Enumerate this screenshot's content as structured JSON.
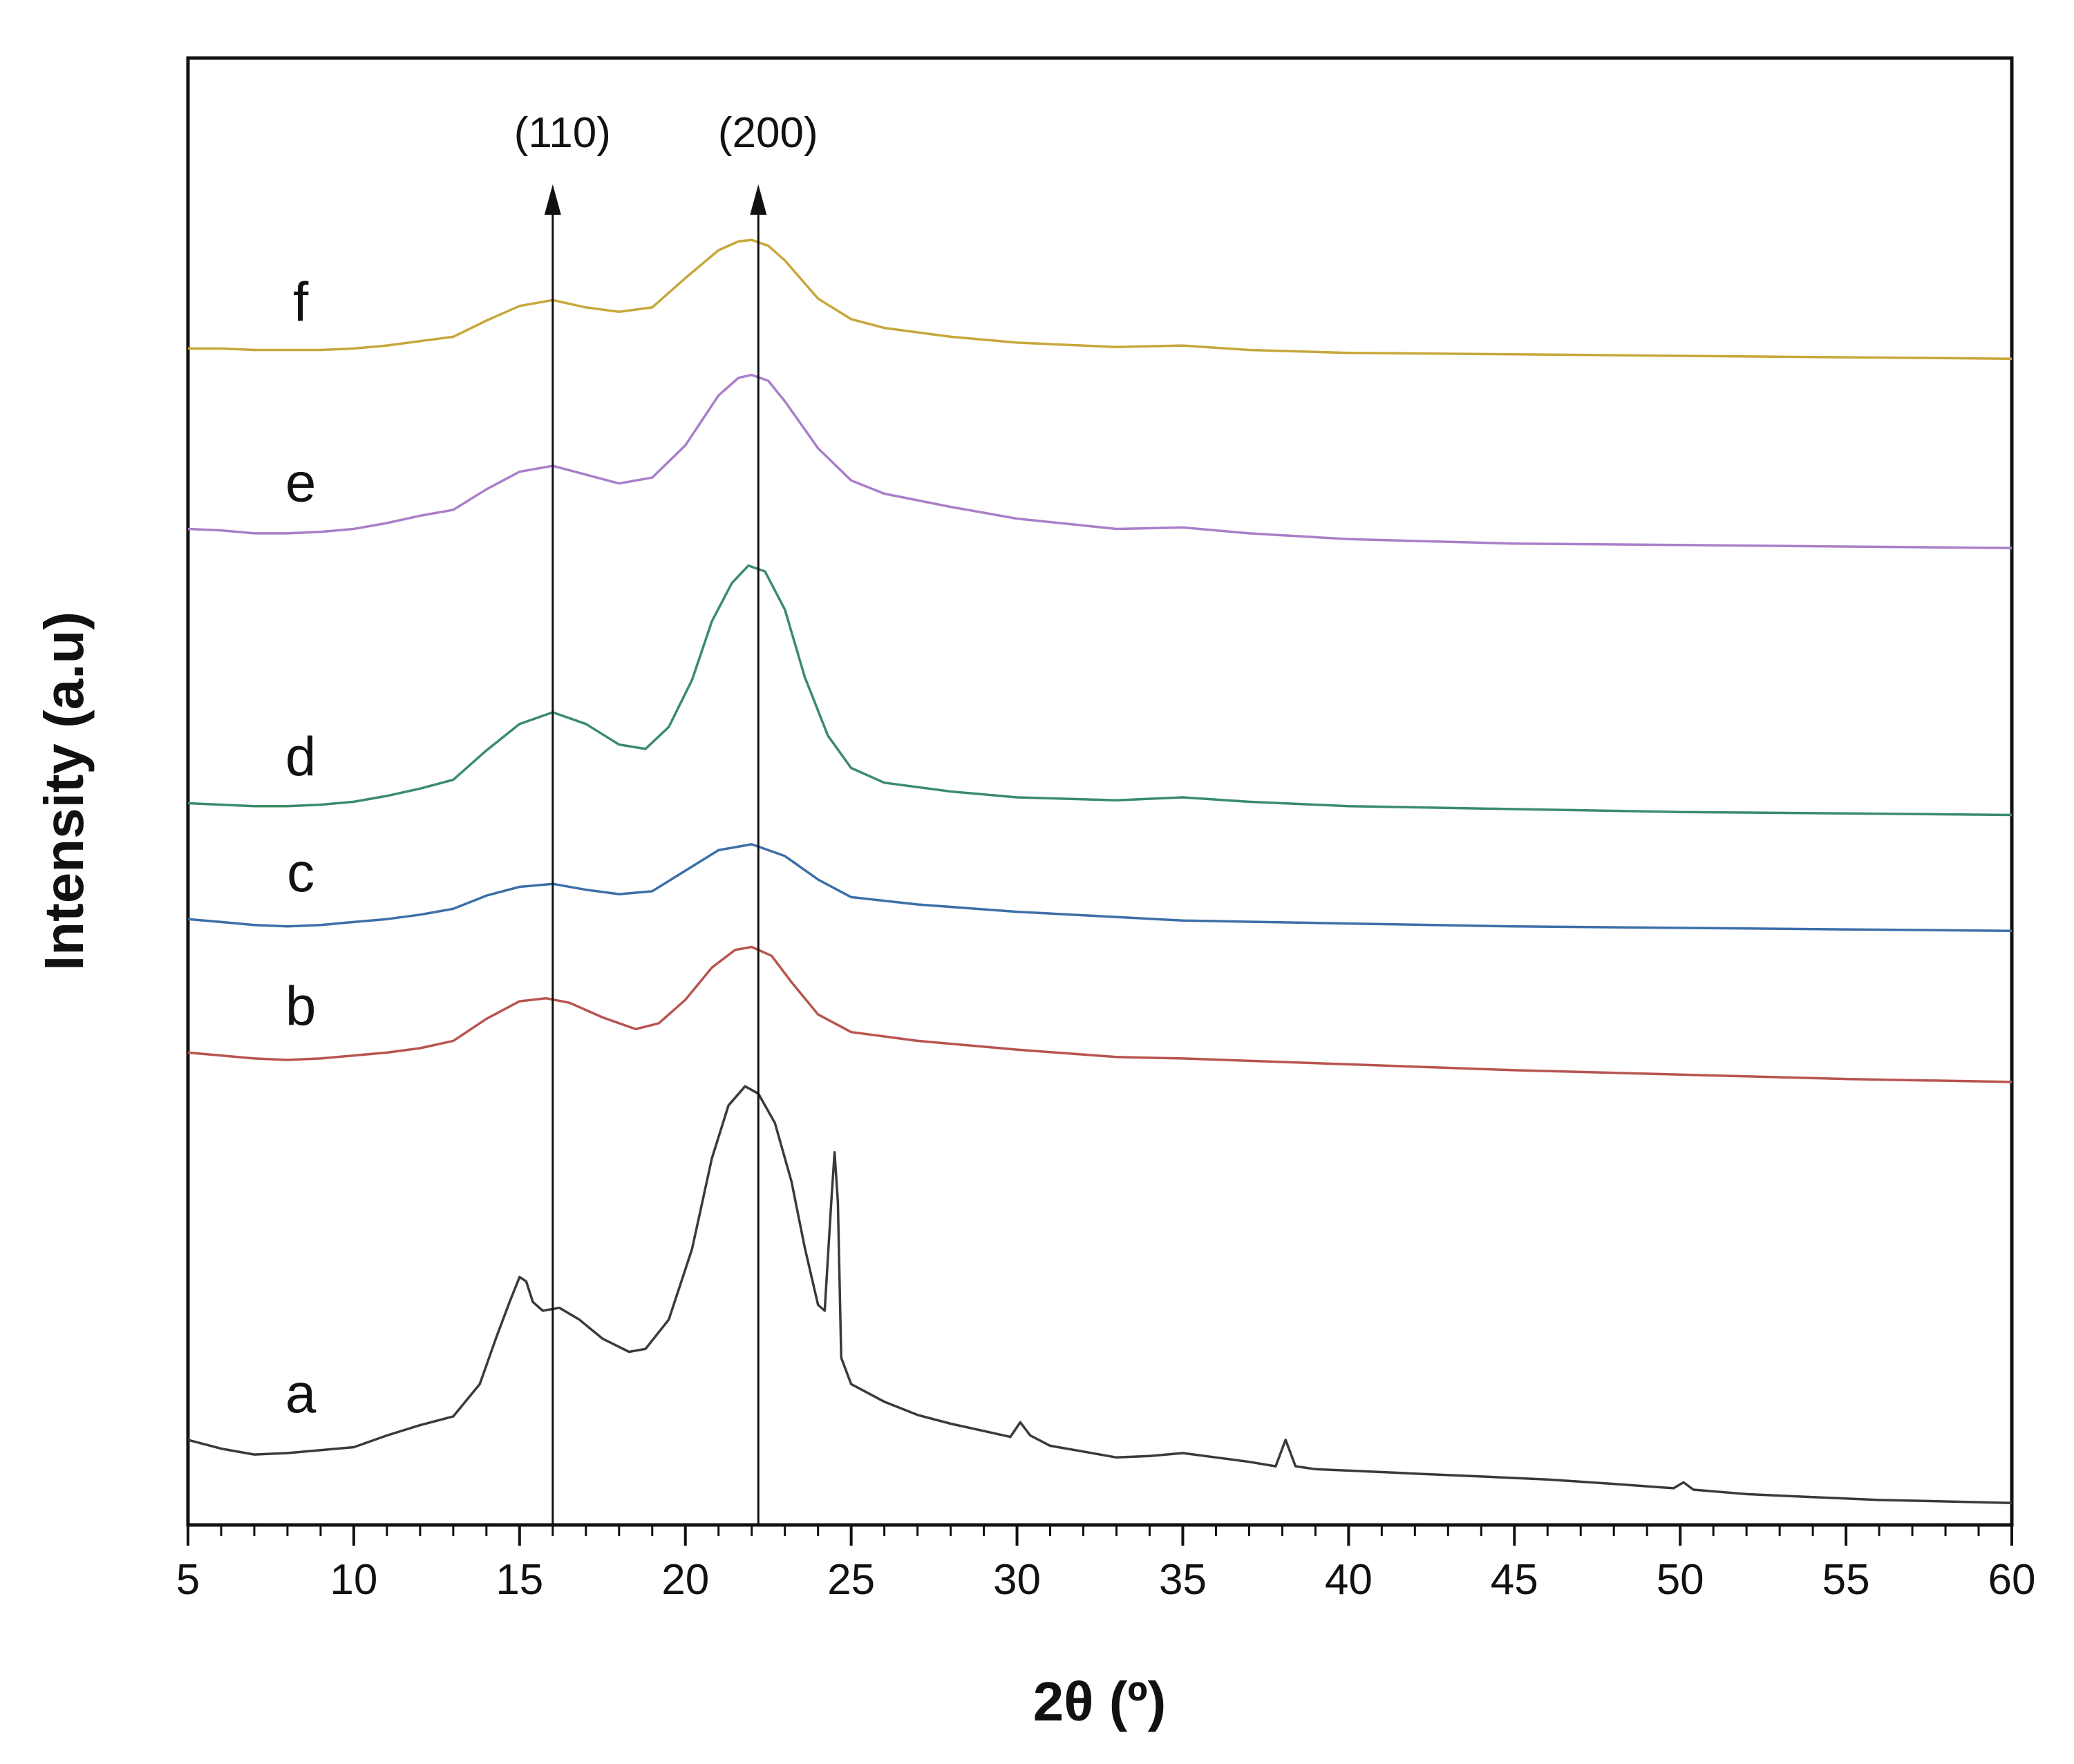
{
  "chart_data": {
    "type": "line",
    "title": "",
    "xlabel": "2θ (º)",
    "ylabel": "Intensity (a.u)",
    "xlim": [
      5,
      60
    ],
    "ylim": [
      0,
      100
    ],
    "xticks": [
      5,
      10,
      15,
      20,
      25,
      30,
      35,
      40,
      45,
      50,
      55,
      60
    ],
    "grid": false,
    "legend": "none",
    "peak_markers": [
      {
        "label": "(110)",
        "x": 16.0
      },
      {
        "label": "(200)",
        "x": 22.2
      }
    ],
    "series": [
      {
        "name": "a",
        "color": "#3a3a3a",
        "points": [
          [
            5,
            5.8
          ],
          [
            6,
            5.2
          ],
          [
            7,
            4.8
          ],
          [
            8,
            4.9
          ],
          [
            9,
            5.1
          ],
          [
            10,
            5.3
          ],
          [
            11,
            6.1
          ],
          [
            12,
            6.8
          ],
          [
            13,
            7.4
          ],
          [
            13.8,
            9.6
          ],
          [
            14.3,
            12.8
          ],
          [
            14.7,
            15.2
          ],
          [
            15.0,
            16.9
          ],
          [
            15.2,
            16.6
          ],
          [
            15.4,
            15.2
          ],
          [
            15.7,
            14.6
          ],
          [
            16.2,
            14.8
          ],
          [
            16.8,
            14.0
          ],
          [
            17.5,
            12.7
          ],
          [
            18.3,
            11.8
          ],
          [
            18.8,
            12.0
          ],
          [
            19.5,
            14.0
          ],
          [
            20.2,
            18.8
          ],
          [
            20.8,
            25.0
          ],
          [
            21.3,
            28.6
          ],
          [
            21.8,
            29.9
          ],
          [
            22.2,
            29.4
          ],
          [
            22.7,
            27.4
          ],
          [
            23.2,
            23.4
          ],
          [
            23.6,
            18.9
          ],
          [
            24.0,
            15.0
          ],
          [
            24.2,
            14.6
          ],
          [
            24.4,
            22.0
          ],
          [
            24.5,
            25.4
          ],
          [
            24.6,
            22.0
          ],
          [
            24.7,
            11.4
          ],
          [
            25.0,
            9.6
          ],
          [
            26,
            8.4
          ],
          [
            27,
            7.5
          ],
          [
            28,
            6.9
          ],
          [
            29,
            6.4
          ],
          [
            29.8,
            6.0
          ],
          [
            30.1,
            7.0
          ],
          [
            30.4,
            6.1
          ],
          [
            31,
            5.4
          ],
          [
            32,
            5.0
          ],
          [
            33,
            4.6
          ],
          [
            34,
            4.7
          ],
          [
            35,
            4.9
          ],
          [
            36,
            4.6
          ],
          [
            37,
            4.3
          ],
          [
            37.8,
            4.0
          ],
          [
            38.1,
            5.8
          ],
          [
            38.4,
            4.0
          ],
          [
            39,
            3.8
          ],
          [
            40,
            3.7
          ],
          [
            42,
            3.5
          ],
          [
            44,
            3.3
          ],
          [
            46,
            3.1
          ],
          [
            48,
            2.8
          ],
          [
            49.8,
            2.5
          ],
          [
            50.1,
            2.9
          ],
          [
            50.4,
            2.4
          ],
          [
            52,
            2.1
          ],
          [
            54,
            1.9
          ],
          [
            56,
            1.7
          ],
          [
            58,
            1.6
          ],
          [
            60,
            1.5
          ]
        ]
      },
      {
        "name": "b",
        "color": "#b85450",
        "points": [
          [
            5,
            32.2
          ],
          [
            6,
            32.0
          ],
          [
            7,
            31.8
          ],
          [
            8,
            31.7
          ],
          [
            9,
            31.8
          ],
          [
            10,
            32.0
          ],
          [
            11,
            32.2
          ],
          [
            12,
            32.5
          ],
          [
            13,
            33.0
          ],
          [
            14,
            34.5
          ],
          [
            15,
            35.7
          ],
          [
            15.8,
            35.9
          ],
          [
            16.5,
            35.6
          ],
          [
            17.5,
            34.6
          ],
          [
            18.5,
            33.8
          ],
          [
            19.2,
            34.2
          ],
          [
            20,
            35.8
          ],
          [
            20.8,
            38.0
          ],
          [
            21.5,
            39.2
          ],
          [
            22.0,
            39.4
          ],
          [
            22.6,
            38.8
          ],
          [
            23.2,
            37.0
          ],
          [
            24,
            34.8
          ],
          [
            25,
            33.6
          ],
          [
            27,
            33.0
          ],
          [
            30,
            32.4
          ],
          [
            33,
            31.9
          ],
          [
            35,
            31.8
          ],
          [
            40,
            31.4
          ],
          [
            45,
            31.0
          ],
          [
            50,
            30.7
          ],
          [
            55,
            30.4
          ],
          [
            60,
            30.2
          ]
        ]
      },
      {
        "name": "c",
        "color": "#3d6fa8",
        "points": [
          [
            5,
            41.3
          ],
          [
            6,
            41.1
          ],
          [
            7,
            40.9
          ],
          [
            8,
            40.8
          ],
          [
            9,
            40.9
          ],
          [
            10,
            41.1
          ],
          [
            11,
            41.3
          ],
          [
            12,
            41.6
          ],
          [
            13,
            42.0
          ],
          [
            14,
            42.9
          ],
          [
            15,
            43.5
          ],
          [
            16,
            43.7
          ],
          [
            17,
            43.3
          ],
          [
            18,
            43.0
          ],
          [
            19,
            43.2
          ],
          [
            20,
            44.6
          ],
          [
            21,
            46.0
          ],
          [
            22,
            46.4
          ],
          [
            23,
            45.6
          ],
          [
            24,
            44.0
          ],
          [
            25,
            42.8
          ],
          [
            27,
            42.3
          ],
          [
            30,
            41.8
          ],
          [
            35,
            41.2
          ],
          [
            40,
            41.0
          ],
          [
            45,
            40.8
          ],
          [
            50,
            40.7
          ],
          [
            55,
            40.6
          ],
          [
            60,
            40.5
          ]
        ]
      },
      {
        "name": "d",
        "color": "#3a8c6a",
        "points": [
          [
            5,
            49.2
          ],
          [
            6,
            49.1
          ],
          [
            7,
            49.0
          ],
          [
            8,
            49.0
          ],
          [
            9,
            49.1
          ],
          [
            10,
            49.3
          ],
          [
            11,
            49.7
          ],
          [
            12,
            50.2
          ],
          [
            13,
            50.8
          ],
          [
            14,
            52.8
          ],
          [
            15,
            54.6
          ],
          [
            16,
            55.4
          ],
          [
            17,
            54.6
          ],
          [
            18,
            53.2
          ],
          [
            18.8,
            52.9
          ],
          [
            19.5,
            54.4
          ],
          [
            20.2,
            57.6
          ],
          [
            20.8,
            61.6
          ],
          [
            21.4,
            64.2
          ],
          [
            21.9,
            65.4
          ],
          [
            22.4,
            65.0
          ],
          [
            23,
            62.4
          ],
          [
            23.6,
            57.8
          ],
          [
            24.3,
            53.8
          ],
          [
            25,
            51.6
          ],
          [
            26,
            50.6
          ],
          [
            28,
            50.0
          ],
          [
            30,
            49.6
          ],
          [
            33,
            49.4
          ],
          [
            35,
            49.6
          ],
          [
            37,
            49.3
          ],
          [
            40,
            49.0
          ],
          [
            45,
            48.8
          ],
          [
            50,
            48.6
          ],
          [
            55,
            48.5
          ],
          [
            60,
            48.4
          ]
        ]
      },
      {
        "name": "e",
        "color": "#a97fc9",
        "points": [
          [
            5,
            67.9
          ],
          [
            6,
            67.8
          ],
          [
            7,
            67.6
          ],
          [
            8,
            67.6
          ],
          [
            9,
            67.7
          ],
          [
            10,
            67.9
          ],
          [
            11,
            68.3
          ],
          [
            12,
            68.8
          ],
          [
            13,
            69.2
          ],
          [
            14,
            70.6
          ],
          [
            15,
            71.8
          ],
          [
            16,
            72.2
          ],
          [
            17,
            71.6
          ],
          [
            18,
            71.0
          ],
          [
            19,
            71.4
          ],
          [
            20,
            73.6
          ],
          [
            21,
            77.0
          ],
          [
            21.6,
            78.2
          ],
          [
            22.0,
            78.4
          ],
          [
            22.5,
            78.0
          ],
          [
            23,
            76.6
          ],
          [
            24,
            73.4
          ],
          [
            25,
            71.2
          ],
          [
            26,
            70.3
          ],
          [
            28,
            69.4
          ],
          [
            30,
            68.6
          ],
          [
            33,
            67.9
          ],
          [
            35,
            68.0
          ],
          [
            37,
            67.6
          ],
          [
            40,
            67.2
          ],
          [
            45,
            66.9
          ],
          [
            50,
            66.8
          ],
          [
            55,
            66.7
          ],
          [
            60,
            66.6
          ]
        ]
      },
      {
        "name": "f",
        "color": "#c7a73a",
        "points": [
          [
            5,
            80.2
          ],
          [
            6,
            80.2
          ],
          [
            7,
            80.1
          ],
          [
            8,
            80.1
          ],
          [
            9,
            80.1
          ],
          [
            10,
            80.2
          ],
          [
            11,
            80.4
          ],
          [
            12,
            80.7
          ],
          [
            13,
            81.0
          ],
          [
            14,
            82.1
          ],
          [
            15,
            83.1
          ],
          [
            16,
            83.5
          ],
          [
            17,
            83.0
          ],
          [
            18,
            82.7
          ],
          [
            19,
            83.0
          ],
          [
            20,
            85.0
          ],
          [
            21,
            86.9
          ],
          [
            21.6,
            87.5
          ],
          [
            22.0,
            87.6
          ],
          [
            22.5,
            87.2
          ],
          [
            23,
            86.2
          ],
          [
            24,
            83.6
          ],
          [
            25,
            82.2
          ],
          [
            26,
            81.6
          ],
          [
            28,
            81.0
          ],
          [
            30,
            80.6
          ],
          [
            33,
            80.3
          ],
          [
            35,
            80.4
          ],
          [
            37,
            80.1
          ],
          [
            40,
            79.9
          ],
          [
            45,
            79.8
          ],
          [
            50,
            79.7
          ],
          [
            55,
            79.6
          ],
          [
            60,
            79.5
          ]
        ]
      }
    ]
  }
}
